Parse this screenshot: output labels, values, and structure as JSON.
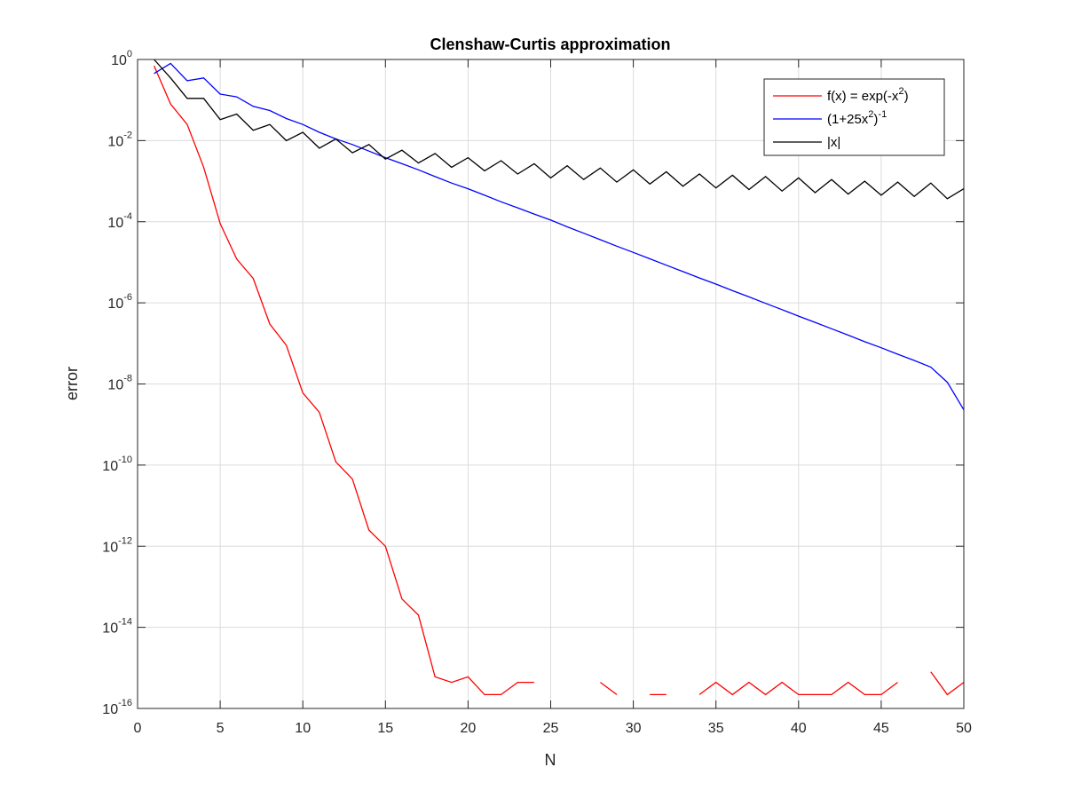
{
  "chart_data": {
    "type": "line",
    "title": "Clenshaw-Curtis approximation",
    "xlabel": "N",
    "ylabel": "error",
    "yscale": "log",
    "xlim": [
      0,
      50
    ],
    "ylim": [
      1e-16,
      1
    ],
    "xticks": [
      0,
      5,
      10,
      15,
      20,
      25,
      30,
      35,
      40,
      45,
      50
    ],
    "yticks": [
      {
        "base": "10",
        "exp": "0"
      },
      {
        "base": "10",
        "exp": "-2"
      },
      {
        "base": "10",
        "exp": "-4"
      },
      {
        "base": "10",
        "exp": "-6"
      },
      {
        "base": "10",
        "exp": "-8"
      },
      {
        "base": "10",
        "exp": "-10"
      },
      {
        "base": "10",
        "exp": "-12"
      },
      {
        "base": "10",
        "exp": "-14"
      },
      {
        "base": "10",
        "exp": "-16"
      }
    ],
    "grid": true,
    "legend_position": "top-right",
    "series": [
      {
        "name": "f(x) = exp(-x^2)",
        "legend": {
          "pre": "f(x) = exp(-x",
          "sup": "2",
          "post": ")"
        },
        "color": "#ff0000",
        "x": [
          1,
          2,
          3,
          4,
          5,
          6,
          7,
          8,
          9,
          10,
          11,
          12,
          13,
          14,
          15,
          16,
          17,
          18,
          19,
          20,
          21,
          22,
          23,
          24,
          25,
          26,
          27,
          28,
          29,
          30,
          31,
          32,
          33,
          34,
          35,
          36,
          37,
          38,
          39,
          40,
          41,
          42,
          43,
          44,
          45,
          46,
          47,
          48,
          49,
          50
        ],
        "y": [
          0.7,
          0.08,
          0.025,
          0.0022,
          9e-05,
          1.2e-05,
          4e-06,
          3e-07,
          9e-08,
          6e-09,
          2e-09,
          1.2e-10,
          4.5e-11,
          2.5e-12,
          1e-12,
          5e-14,
          2e-14,
          6e-16,
          4.4e-16,
          6e-16,
          2.2e-16,
          2.2e-16,
          4.4e-16,
          4.4e-16,
          null,
          null,
          null,
          4.4e-16,
          2.2e-16,
          null,
          2.2e-16,
          2.2e-16,
          null,
          2.2e-16,
          4.4e-16,
          2.2e-16,
          4.4e-16,
          2.2e-16,
          4.4e-16,
          2.2e-16,
          2.2e-16,
          2.2e-16,
          4.4e-16,
          2.2e-16,
          2.2e-16,
          4.4e-16,
          null,
          8e-16,
          2.2e-16,
          4.4e-16
        ]
      },
      {
        "name": "(1+25x^2)^-1",
        "legend": {
          "pre": "(1+25x",
          "sup": "2",
          "mid": ")",
          "sup2": "-1"
        },
        "color": "#0000ff",
        "x": [
          1,
          2,
          3,
          4,
          5,
          6,
          7,
          8,
          9,
          10,
          11,
          12,
          13,
          14,
          15,
          16,
          17,
          18,
          19,
          20,
          21,
          22,
          23,
          24,
          25,
          26,
          27,
          28,
          29,
          30,
          31,
          32,
          33,
          34,
          35,
          36,
          37,
          38,
          39,
          40,
          41,
          42,
          43,
          44,
          45,
          46,
          47,
          48,
          49,
          50
        ],
        "y": [
          0.45,
          0.8,
          0.3,
          0.35,
          0.14,
          0.12,
          0.07,
          0.055,
          0.035,
          0.025,
          0.016,
          0.011,
          0.008,
          0.0055,
          0.0038,
          0.0027,
          0.0019,
          0.0013,
          0.0009,
          0.00065,
          0.00045,
          0.00031,
          0.00022,
          0.000155,
          0.00011,
          7.5e-05,
          5.2e-05,
          3.6e-05,
          2.5e-05,
          1.75e-05,
          1.22e-05,
          8.5e-06,
          5.9e-06,
          4.1e-06,
          2.9e-06,
          2e-06,
          1.4e-06,
          9.7e-07,
          6.8e-07,
          4.7e-07,
          3.3e-07,
          2.3e-07,
          1.6e-07,
          1.1e-07,
          7.8e-08,
          5.4e-08,
          3.8e-08,
          2.6e-08,
          1.1e-08,
          2.3e-09
        ]
      },
      {
        "name": "|x|",
        "legend": {
          "pre": "|x|"
        },
        "color": "#000000",
        "x": [
          1,
          2,
          3,
          4,
          5,
          6,
          7,
          8,
          9,
          10,
          11,
          12,
          13,
          14,
          15,
          16,
          17,
          18,
          19,
          20,
          21,
          22,
          23,
          24,
          25,
          26,
          27,
          28,
          29,
          30,
          31,
          32,
          33,
          34,
          35,
          36,
          37,
          38,
          39,
          40,
          41,
          42,
          43,
          44,
          45,
          46,
          47,
          48,
          49,
          50
        ],
        "y": [
          1.0,
          0.35,
          0.11,
          0.11,
          0.033,
          0.045,
          0.018,
          0.025,
          0.01,
          0.016,
          0.0065,
          0.011,
          0.005,
          0.008,
          0.0035,
          0.0058,
          0.0028,
          0.0048,
          0.0022,
          0.0038,
          0.0018,
          0.0032,
          0.0015,
          0.0027,
          0.0012,
          0.0024,
          0.0011,
          0.0021,
          0.00095,
          0.0019,
          0.00085,
          0.0017,
          0.00075,
          0.0015,
          0.00068,
          0.0014,
          0.00062,
          0.0013,
          0.00057,
          0.0012,
          0.00052,
          0.0011,
          0.00048,
          0.001,
          0.00045,
          0.00095,
          0.00042,
          0.0009,
          0.00037,
          0.00065
        ]
      }
    ]
  }
}
